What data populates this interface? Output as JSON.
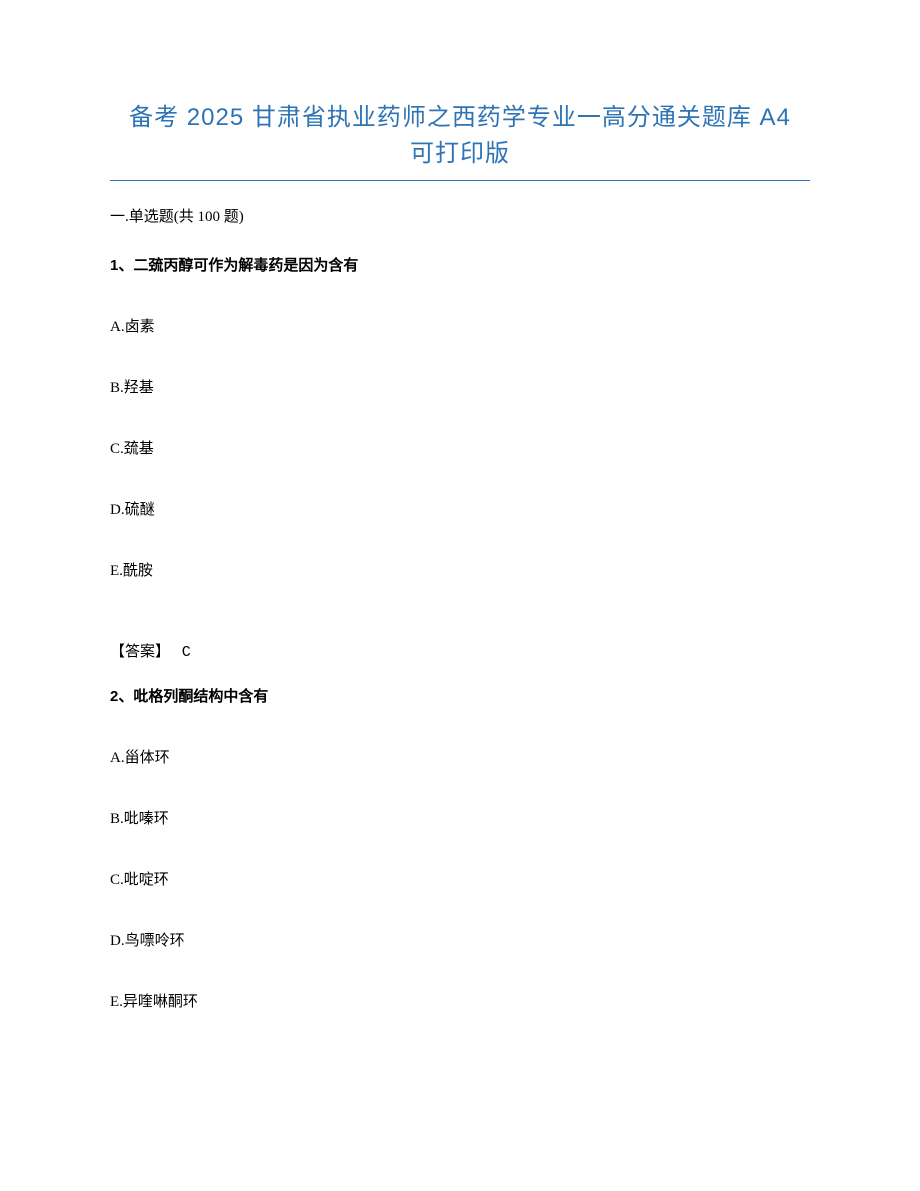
{
  "title": {
    "line1": "备考 2025 甘肃省执业药师之西药学专业一高分通关题库 A4",
    "line2": "可打印版",
    "color": "#2e74b5",
    "fontsize": 24
  },
  "section": {
    "header": "一.单选题(共 100 题)"
  },
  "questions": [
    {
      "number": "1、",
      "stem": "二巯丙醇可作为解毒药是因为含有",
      "options": [
        "A.卤素",
        "B.羟基",
        "C.巯基",
        "D.硫醚",
        "E.酰胺"
      ],
      "answer_label": "【答案】",
      "answer_value": "C"
    },
    {
      "number": "2、",
      "stem": "吡格列酮结构中含有",
      "options": [
        "A.甾体环",
        "B.吡嗪环",
        "C.吡啶环",
        "D.鸟嘌呤环",
        "E.异喹啉酮环"
      ],
      "answer_label": "",
      "answer_value": ""
    }
  ],
  "colors": {
    "title": "#2e74b5",
    "text": "#000000",
    "background": "#ffffff"
  }
}
